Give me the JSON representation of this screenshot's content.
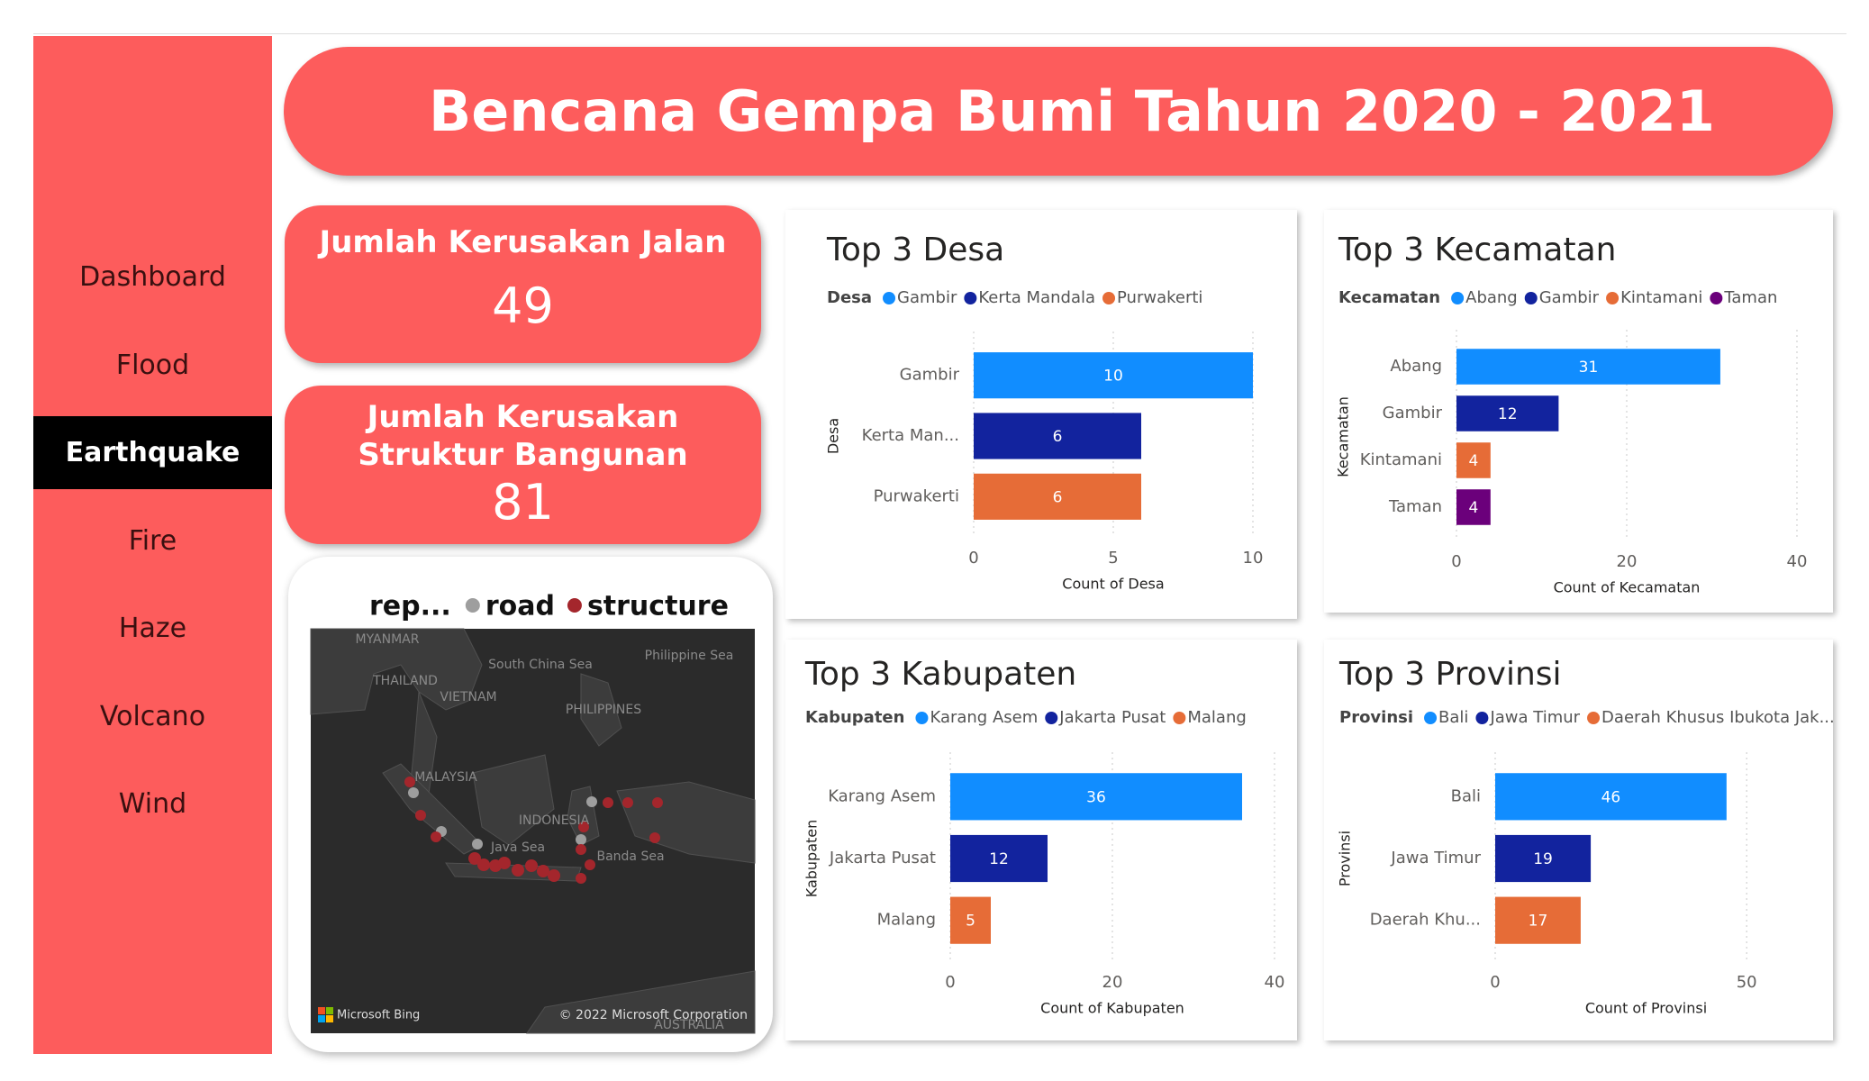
{
  "nav": {
    "items": [
      "Dashboard",
      "Flood",
      "Earthquake",
      "Fire",
      "Haze",
      "Volcano",
      "Wind"
    ],
    "active": "Earthquake"
  },
  "header": {
    "title": "Bencana Gempa Bumi Tahun 2020 - 2021"
  },
  "cards": [
    {
      "label": "Jumlah Kerusakan Jalan",
      "value": 49
    },
    {
      "label": "Jumlah Kerusakan Struktur Bangunan",
      "value": 81
    }
  ],
  "map": {
    "legend_title": "rep...",
    "legend": [
      {
        "name": "road",
        "color": "#9e9e9e"
      },
      {
        "name": "structure",
        "color": "#a4262c"
      }
    ],
    "labels": [
      "MYANMAR",
      "THAILAND",
      "VIETNAM",
      "South China Sea",
      "Philippine Sea",
      "PHILIPPINES",
      "MALAYSIA",
      "INDONESIA",
      "Java Sea",
      "Banda Sea",
      "AUSTRALIA"
    ],
    "logo_text": "Microsoft Bing",
    "attribution": "© 2022 Microsoft Corporation"
  },
  "chart_data": [
    {
      "type": "bar",
      "orientation": "horizontal",
      "title": "Top 3 Desa",
      "legend_title": "Desa",
      "legend": [
        {
          "name": "Gambir",
          "color": "#118dff"
        },
        {
          "name": "Kerta Mandala",
          "color": "#12239e"
        },
        {
          "name": "Purwakerti",
          "color": "#e66c37"
        }
      ],
      "categories": [
        "Gambir",
        "Kerta Man...",
        "Purwakerti"
      ],
      "values": [
        10,
        6,
        6
      ],
      "x_label": "Count of Desa",
      "y_label": "Desa",
      "xlim": [
        0,
        10
      ],
      "xticks": [
        0,
        5,
        10
      ],
      "grid": true
    },
    {
      "type": "bar",
      "orientation": "horizontal",
      "title": "Top 3 Kecamatan",
      "legend_title": "Kecamatan",
      "legend": [
        {
          "name": "Abang",
          "color": "#118dff"
        },
        {
          "name": "Gambir",
          "color": "#12239e"
        },
        {
          "name": "Kintamani",
          "color": "#e66c37"
        },
        {
          "name": "Taman",
          "color": "#6b007b"
        }
      ],
      "categories": [
        "Abang",
        "Gambir",
        "Kintamani",
        "Taman"
      ],
      "values": [
        31,
        12,
        4,
        4
      ],
      "x_label": "Count of Kecamatan",
      "y_label": "Kecamatan",
      "xlim": [
        0,
        40
      ],
      "xticks": [
        0,
        20,
        40
      ],
      "grid": true
    },
    {
      "type": "bar",
      "orientation": "horizontal",
      "title": "Top 3 Kabupaten",
      "legend_title": "Kabupaten",
      "legend": [
        {
          "name": "Karang Asem",
          "color": "#118dff"
        },
        {
          "name": "Jakarta Pusat",
          "color": "#12239e"
        },
        {
          "name": "Malang",
          "color": "#e66c37"
        }
      ],
      "categories": [
        "Karang Asem",
        "Jakarta Pusat",
        "Malang"
      ],
      "values": [
        36,
        12,
        5
      ],
      "x_label": "Count of Kabupaten",
      "y_label": "Kabupaten",
      "xlim": [
        0,
        40
      ],
      "xticks": [
        0,
        20,
        40
      ],
      "grid": true
    },
    {
      "type": "bar",
      "orientation": "horizontal",
      "title": "Top 3 Provinsi",
      "legend_title": "Provinsi",
      "legend": [
        {
          "name": "Bali",
          "color": "#118dff"
        },
        {
          "name": "Jawa Timur",
          "color": "#12239e"
        },
        {
          "name": "Daerah Khusus Ibukota Jak...",
          "color": "#e66c37"
        }
      ],
      "categories": [
        "Bali",
        "Jawa Timur",
        "Daerah Khu..."
      ],
      "values": [
        46,
        19,
        17
      ],
      "x_label": "Count of Provinsi",
      "y_label": "Provinsi",
      "xlim": [
        0,
        60
      ],
      "xticks": [
        0,
        50
      ],
      "grid": true
    }
  ]
}
